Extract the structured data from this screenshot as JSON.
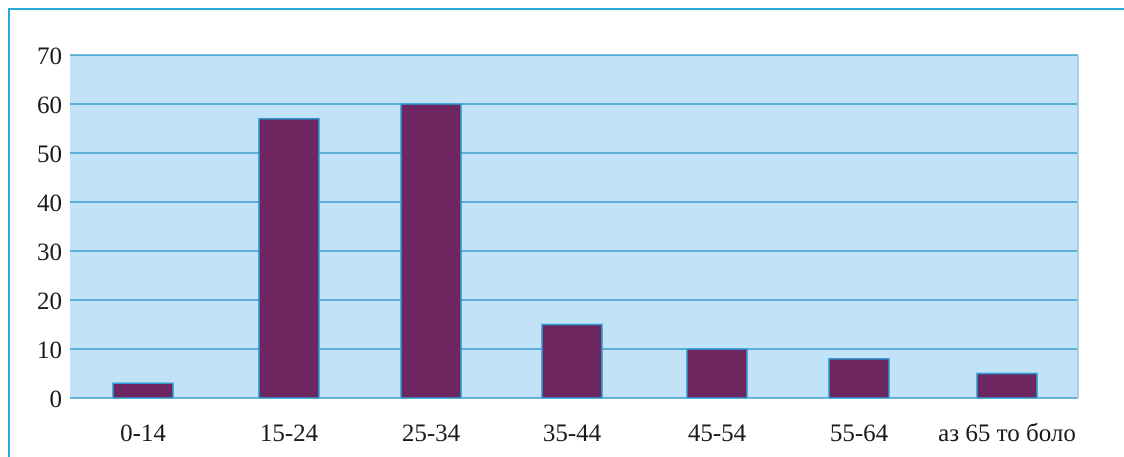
{
  "chart_data": {
    "type": "bar",
    "categories": [
      "0-14",
      "15-24",
      "25-34",
      "35-44",
      "45-54",
      "55-64",
      "аз 65 то боло"
    ],
    "values": [
      3,
      57,
      60,
      15,
      10,
      8,
      5
    ],
    "title": "",
    "xlabel": "",
    "ylabel": "",
    "ylim": [
      0,
      70
    ],
    "yticks": [
      "0",
      "10",
      "20",
      "30",
      "40",
      "50",
      "60",
      "70"
    ],
    "grid": true,
    "legend": "none",
    "colors": {
      "bar": "#6d2660",
      "bar_edge": "#2b9bd4",
      "plot_bg": "#c1e2f7",
      "grid": "#1f8fc8",
      "frame": "#27a9d9"
    }
  }
}
